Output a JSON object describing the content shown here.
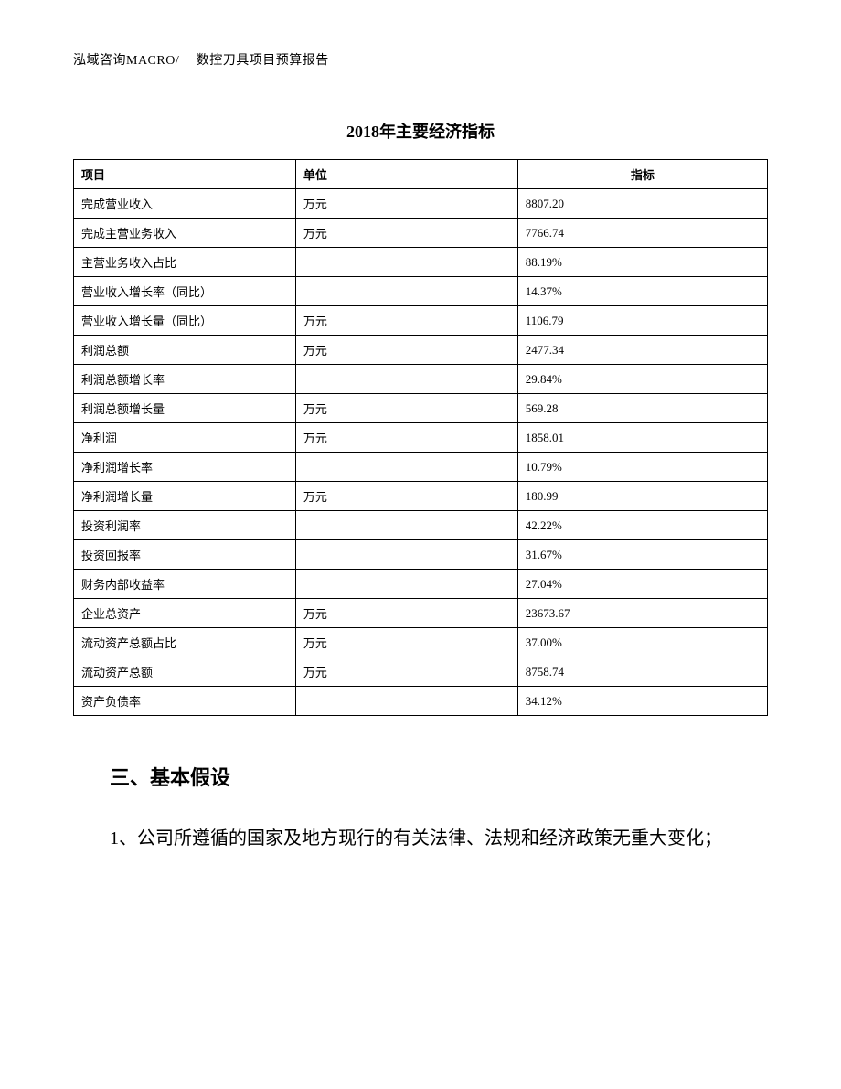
{
  "header": "泓域咨询MACRO/　 数控刀具项目预算报告",
  "table_title": "2018年主要经济指标",
  "columns": {
    "c1": "项目",
    "c2": "单位",
    "c3": "指标"
  },
  "rows": [
    {
      "name": "完成营业收入",
      "unit": "万元",
      "value": "8807.20"
    },
    {
      "name": "完成主营业务收入",
      "unit": "万元",
      "value": "7766.74"
    },
    {
      "name": "主营业务收入占比",
      "unit": "",
      "value": "88.19%"
    },
    {
      "name": "营业收入增长率（同比）",
      "unit": "",
      "value": "14.37%"
    },
    {
      "name": "营业收入增长量（同比）",
      "unit": "万元",
      "value": "1106.79"
    },
    {
      "name": "利润总额",
      "unit": "万元",
      "value": "2477.34"
    },
    {
      "name": "利润总额增长率",
      "unit": "",
      "value": "29.84%"
    },
    {
      "name": "利润总额增长量",
      "unit": "万元",
      "value": "569.28"
    },
    {
      "name": "净利润",
      "unit": "万元",
      "value": "1858.01"
    },
    {
      "name": "净利润增长率",
      "unit": "",
      "value": "10.79%"
    },
    {
      "name": "净利润增长量",
      "unit": "万元",
      "value": "180.99"
    },
    {
      "name": "投资利润率",
      "unit": "",
      "value": "42.22%"
    },
    {
      "name": "投资回报率",
      "unit": "",
      "value": "31.67%"
    },
    {
      "name": "财务内部收益率",
      "unit": "",
      "value": "27.04%"
    },
    {
      "name": "企业总资产",
      "unit": "万元",
      "value": "23673.67"
    },
    {
      "name": "流动资产总额占比",
      "unit": "万元",
      "value": "37.00%"
    },
    {
      "name": "流动资产总额",
      "unit": "万元",
      "value": "8758.74"
    },
    {
      "name": "资产负债率",
      "unit": "",
      "value": "34.12%"
    }
  ],
  "section_heading": "三、基本假设",
  "body_paragraph": "1、公司所遵循的国家及地方现行的有关法律、法规和经济政策无重大变化；"
}
